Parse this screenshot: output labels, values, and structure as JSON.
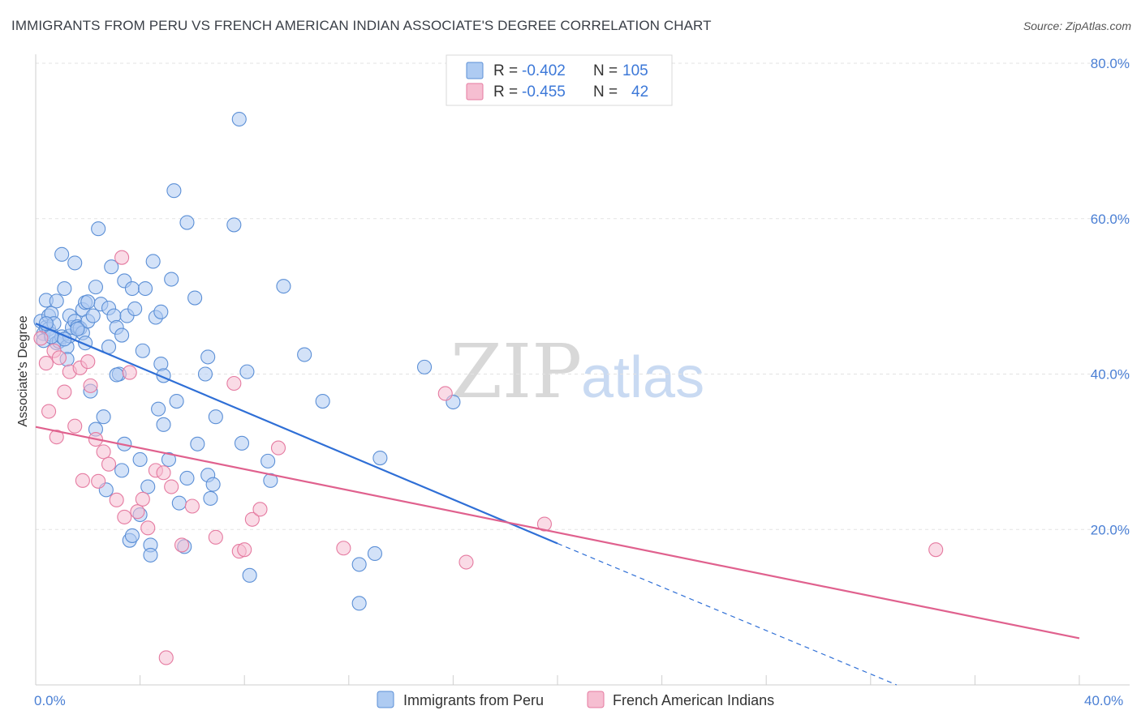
{
  "title": "IMMIGRANTS FROM PERU VS FRENCH AMERICAN INDIAN ASSOCIATE'S DEGREE CORRELATION CHART",
  "source": "Source: ZipAtlas.com",
  "watermark": {
    "zip": "ZIP",
    "atlas": "atlas"
  },
  "colors": {
    "blue": "#5b8fd6",
    "blue_fill": "#aecbf2",
    "pink": "#e57aa0",
    "pink_fill": "#f6bed1",
    "blue_line": "#2f6fd6",
    "pink_line": "#e0618e",
    "tick": "#4a7fd4"
  },
  "legend": {
    "r_label": "R =",
    "n_label": "N =",
    "rows": [
      {
        "r": "-0.402",
        "n": "105",
        "color": "blue"
      },
      {
        "r": "-0.455",
        "n": "42",
        "color": "pink"
      }
    ]
  },
  "chart_data": {
    "type": "scatter",
    "title": "IMMIGRANTS FROM PERU VS FRENCH AMERICAN INDIAN ASSOCIATE'S DEGREE CORRELATION CHART",
    "xlabel": "",
    "ylabel": "Associate's Degree",
    "xlim": [
      0,
      40
    ],
    "ylim": [
      0,
      80
    ],
    "x_tick_labels": [
      "0.0%",
      "40.0%"
    ],
    "y_ticks": [
      20,
      40,
      60,
      80
    ],
    "y_tick_labels": [
      "20.0%",
      "40.0%",
      "60.0%",
      "80.0%"
    ],
    "series": [
      {
        "name": "Immigrants from Peru",
        "color": "blue",
        "points": [
          [
            0.2,
            46.8
          ],
          [
            0.3,
            45.2
          ],
          [
            0.3,
            44.3
          ],
          [
            0.4,
            49.5
          ],
          [
            0.4,
            46.0
          ],
          [
            0.5,
            45.8
          ],
          [
            0.5,
            47.5
          ],
          [
            0.6,
            47.8
          ],
          [
            0.6,
            45.1
          ],
          [
            0.7,
            46.5
          ],
          [
            0.8,
            49.4
          ],
          [
            0.8,
            44.0
          ],
          [
            0.9,
            44.2
          ],
          [
            1.0,
            55.4
          ],
          [
            1.0,
            44.8
          ],
          [
            1.1,
            51.0
          ],
          [
            1.2,
            43.5
          ],
          [
            1.2,
            41.9
          ],
          [
            1.3,
            47.5
          ],
          [
            1.3,
            44.9
          ],
          [
            1.4,
            46.0
          ],
          [
            1.5,
            46.8
          ],
          [
            1.5,
            54.3
          ],
          [
            1.6,
            46.1
          ],
          [
            1.7,
            45.9
          ],
          [
            1.8,
            48.3
          ],
          [
            1.8,
            45.3
          ],
          [
            1.9,
            49.2
          ],
          [
            1.9,
            44.0
          ],
          [
            2.0,
            46.8
          ],
          [
            2.1,
            37.8
          ],
          [
            2.2,
            47.5
          ],
          [
            2.3,
            51.2
          ],
          [
            2.3,
            32.9
          ],
          [
            2.4,
            58.7
          ],
          [
            2.5,
            49.0
          ],
          [
            2.6,
            34.5
          ],
          [
            2.7,
            25.1
          ],
          [
            2.8,
            48.5
          ],
          [
            2.8,
            43.5
          ],
          [
            2.9,
            53.8
          ],
          [
            3.0,
            47.5
          ],
          [
            3.1,
            46.0
          ],
          [
            3.2,
            40.0
          ],
          [
            3.3,
            27.6
          ],
          [
            3.3,
            45.0
          ],
          [
            3.4,
            52.0
          ],
          [
            3.4,
            31.0
          ],
          [
            3.5,
            47.5
          ],
          [
            3.6,
            18.6
          ],
          [
            3.7,
            51.0
          ],
          [
            3.7,
            19.2
          ],
          [
            3.8,
            48.4
          ],
          [
            4.0,
            21.9
          ],
          [
            4.0,
            29.0
          ],
          [
            4.1,
            43.0
          ],
          [
            4.2,
            51.0
          ],
          [
            4.3,
            25.5
          ],
          [
            4.4,
            18.0
          ],
          [
            4.4,
            16.7
          ],
          [
            4.5,
            54.5
          ],
          [
            4.6,
            47.3
          ],
          [
            4.7,
            35.5
          ],
          [
            4.8,
            48.0
          ],
          [
            4.8,
            41.3
          ],
          [
            4.9,
            33.5
          ],
          [
            4.9,
            39.8
          ],
          [
            5.1,
            29.0
          ],
          [
            5.2,
            52.2
          ],
          [
            5.3,
            63.6
          ],
          [
            5.4,
            36.5
          ],
          [
            5.5,
            23.4
          ],
          [
            5.7,
            17.8
          ],
          [
            5.8,
            59.5
          ],
          [
            5.8,
            26.6
          ],
          [
            6.1,
            49.8
          ],
          [
            6.2,
            31.0
          ],
          [
            6.5,
            40.0
          ],
          [
            6.6,
            27.0
          ],
          [
            6.6,
            42.2
          ],
          [
            6.7,
            24.0
          ],
          [
            6.8,
            25.8
          ],
          [
            6.9,
            34.5
          ],
          [
            7.6,
            59.2
          ],
          [
            7.8,
            72.8
          ],
          [
            7.9,
            31.1
          ],
          [
            8.1,
            40.3
          ],
          [
            8.2,
            14.1
          ],
          [
            8.9,
            28.8
          ],
          [
            9.0,
            26.3
          ],
          [
            9.5,
            51.3
          ],
          [
            10.3,
            42.5
          ],
          [
            11.0,
            36.5
          ],
          [
            12.4,
            15.5
          ],
          [
            12.4,
            10.5
          ],
          [
            13.0,
            16.9
          ],
          [
            13.2,
            29.2
          ],
          [
            14.9,
            40.9
          ],
          [
            16.0,
            36.4
          ],
          [
            0.4,
            46.5
          ],
          [
            0.6,
            44.8
          ],
          [
            1.1,
            44.5
          ],
          [
            1.6,
            45.8
          ],
          [
            2.0,
            49.3
          ],
          [
            3.1,
            39.9
          ]
        ]
      },
      {
        "name": "French American Indians",
        "color": "pink",
        "points": [
          [
            0.2,
            44.6
          ],
          [
            0.4,
            41.4
          ],
          [
            0.5,
            35.2
          ],
          [
            0.7,
            43.0
          ],
          [
            0.8,
            31.9
          ],
          [
            0.9,
            42.1
          ],
          [
            1.1,
            37.7
          ],
          [
            1.3,
            40.3
          ],
          [
            1.5,
            33.3
          ],
          [
            1.7,
            40.8
          ],
          [
            1.8,
            26.3
          ],
          [
            2.0,
            41.6
          ],
          [
            2.1,
            38.5
          ],
          [
            2.3,
            31.6
          ],
          [
            2.4,
            26.2
          ],
          [
            2.6,
            30.0
          ],
          [
            2.8,
            28.4
          ],
          [
            3.1,
            23.8
          ],
          [
            3.3,
            55.0
          ],
          [
            3.4,
            21.6
          ],
          [
            3.6,
            40.2
          ],
          [
            3.9,
            22.3
          ],
          [
            4.1,
            23.9
          ],
          [
            4.3,
            20.2
          ],
          [
            4.6,
            27.6
          ],
          [
            4.9,
            27.3
          ],
          [
            5.0,
            3.5
          ],
          [
            5.2,
            25.5
          ],
          [
            5.6,
            18.0
          ],
          [
            6.0,
            23.0
          ],
          [
            6.9,
            19.0
          ],
          [
            7.6,
            38.8
          ],
          [
            7.8,
            17.2
          ],
          [
            8.0,
            17.4
          ],
          [
            8.3,
            21.3
          ],
          [
            8.6,
            22.6
          ],
          [
            9.3,
            30.5
          ],
          [
            11.8,
            17.6
          ],
          [
            15.7,
            37.5
          ],
          [
            16.5,
            15.8
          ],
          [
            19.5,
            20.7
          ],
          [
            34.5,
            17.4
          ]
        ]
      }
    ],
    "trend_lines": [
      {
        "series": "Immigrants from Peru",
        "x": [
          0,
          20
        ],
        "y": [
          46.5,
          18.2
        ],
        "dashed_extension_to": [
          33,
          0
        ]
      },
      {
        "series": "French American Indians",
        "x": [
          0,
          40
        ],
        "y": [
          33.2,
          6.0
        ]
      }
    ],
    "legend_position": "top-center"
  }
}
